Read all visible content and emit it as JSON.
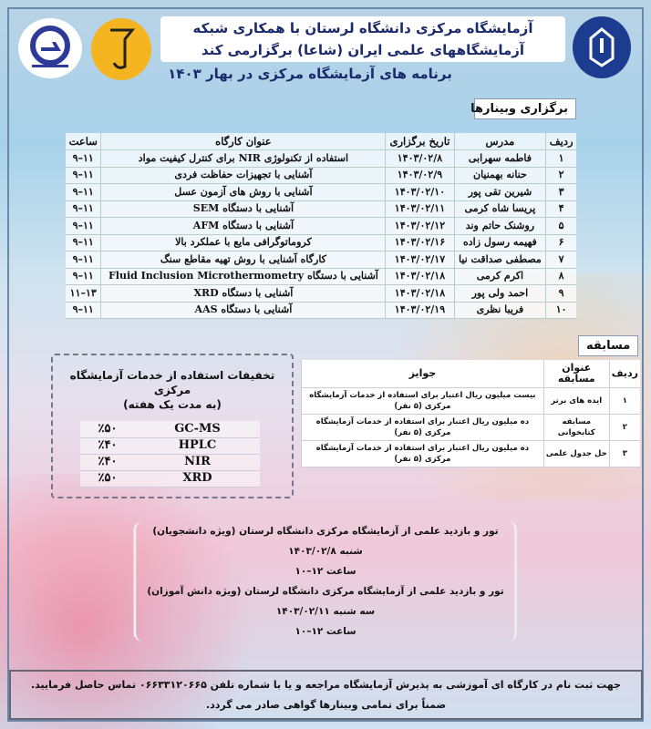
{
  "header": {
    "line1": "آزمایشگاه مرکزی دانشگاه لرستان با همکاری شبکه",
    "line2": "آزمایشگاههای علمی ایران (شاعا) برگزارمی کند",
    "subtitle": "برنامه های آزمایشگاه مرکزی در بهار ۱۴۰۳"
  },
  "logos": {
    "central_lab": "آزمایشگاه مرکزی دانشگاه لرستان",
    "shaa": "شاعا",
    "university": "دانشگاه لرستان",
    "colors": {
      "university": "#1c3d8f",
      "shaa": "#f5b521",
      "central_lab": "#2e3a9a"
    }
  },
  "webinars": {
    "section_label": "برگزاری وبینارها",
    "columns": [
      "ردیف",
      "مدرس",
      "تاریخ برگزاری",
      "عنوان کارگاه",
      "ساعت"
    ],
    "rows": [
      [
        "۱",
        "فاطمه سهرابی",
        "۱۴۰۳/۰۲/۸",
        "استفاده از تکنولوژی NIR برای کنترل کیفیت مواد",
        "۱۱–۹"
      ],
      [
        "۲",
        "حنانه بهمنیان",
        "۱۴۰۳/۰۲/۹",
        "آشنایی با تجهیزات حفاظت فردی",
        "۱۱–۹"
      ],
      [
        "۳",
        "شیرین تقی پور",
        "۱۴۰۳/۰۲/۱۰",
        "آشنایی با روش های آزمون عسل",
        "۱۱–۹"
      ],
      [
        "۴",
        "پریسا شاه کرمی",
        "۱۴۰۳/۰۲/۱۱",
        "آشنایی با دستگاه SEM",
        "۱۱–۹"
      ],
      [
        "۵",
        "روشنک حاتم وند",
        "۱۴۰۳/۰۲/۱۲",
        "آشنایی با دستگاه AFM",
        "۱۱–۹"
      ],
      [
        "۶",
        "فهیمه رسول زاده",
        "۱۴۰۳/۰۲/۱۶",
        "کروماتوگرافی مایع با عملکرد بالا",
        "۱۱–۹"
      ],
      [
        "۷",
        "مصطفی صداقت نیا",
        "۱۴۰۳/۰۲/۱۷",
        "کارگاه آشنایی با روش تهیه مقاطع سنگ",
        "۱۱–۹"
      ],
      [
        "۸",
        "اکرم کرمی",
        "۱۴۰۳/۰۲/۱۸",
        "آشنایی با دستگاه Fluid Inclusion Microthermometry",
        "۱۱–۹"
      ],
      [
        "۹",
        "احمد ولی پور",
        "۱۴۰۳/۰۲/۱۸",
        "آشنایی با دستگاه XRD",
        "۱۳–۱۱"
      ],
      [
        "۱۰",
        "فریبا نظری",
        "۱۴۰۳/۰۲/۱۹",
        "آشنایی با دستگاه AAS",
        "۱۱–۹"
      ]
    ]
  },
  "competition": {
    "section_label": "مسابقه",
    "columns": [
      "ردیف",
      "عنوان مسابقه",
      "جوایز"
    ],
    "rows": [
      [
        "۱",
        "ایده های برتر",
        "بیست میلیون ریال اعتبار برای استفاده از خدمات آزمایشگاه مرکزی (۵ نفر)"
      ],
      [
        "۲",
        "مسابقه کتابخوانی",
        "ده میلیون ریال اعتبار برای استفاده از خدمات آزمایشگاه مرکزی (۵ نفر)"
      ],
      [
        "۳",
        "حل جدول علمی",
        "ده میلیون ریال اعتبار برای استفاده از خدمات آزمایشگاه مرکزی (۵ نفر)"
      ]
    ]
  },
  "discounts": {
    "title": "تخفیفات استفاده از خدمات آزمایشگاه مرکزی",
    "subtitle": "(به مدت یک هفته)",
    "rows": [
      [
        "GC-MS",
        "٪۵۰"
      ],
      [
        "HPLC",
        "٪۴۰"
      ],
      [
        "NIR",
        "٪۴۰"
      ],
      [
        "XRD",
        "٪۵۰"
      ]
    ]
  },
  "tour": {
    "lines": [
      "تور و بازدید علمی از آزمایشگاه مرکزی دانشگاه لرستان (ویژه دانشجویان)",
      "شنبه ۱۴۰۳/۰۲/۸",
      "ساعت ۱۲–۱۰",
      "تور و بازدید علمی از آزمایشگاه مرکزی دانشگاه لرستان (ویژه دانش آموزان)",
      "سه شنبه ۱۴۰۳/۰۲/۱۱",
      "ساعت ۱۲–۱۰"
    ]
  },
  "footer": {
    "line1": "جهت ثبت نام در کارگاه ای آموزشی به پذیرش آزمایشگاه مراجعه و یا با شماره تلفن ۰۶۶۳۳۱۲۰۶۶۵ تماس حاصل فرمایید.",
    "line2": "ضمناً برای تمامی وبینارها گواهی صادر می گردد."
  }
}
